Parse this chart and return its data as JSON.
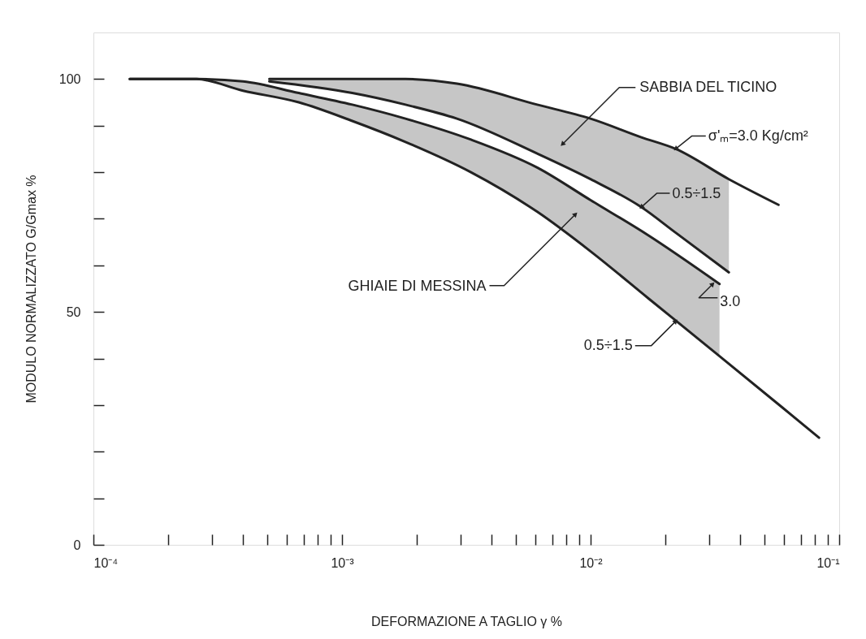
{
  "chart_data": {
    "type": "line",
    "xlabel": "DEFORMAZIONE A TAGLIO γ %",
    "ylabel": "MODULO NORMALIZZATO G/Gmax %",
    "log": "x",
    "xlim": [
      0.0001,
      0.1
    ],
    "xticks": [
      {
        "value": 0.0001,
        "label": "10⁻⁴"
      },
      {
        "value": 0.0002,
        "label": null
      },
      {
        "value": 0.0003,
        "label": null
      },
      {
        "value": 0.0004,
        "label": null
      },
      {
        "value": 0.0005,
        "label": null
      },
      {
        "value": 0.0006,
        "label": null
      },
      {
        "value": 0.0007,
        "label": null
      },
      {
        "value": 0.0008,
        "label": null
      },
      {
        "value": 0.0009,
        "label": null
      },
      {
        "value": 0.001,
        "label": "10⁻³"
      },
      {
        "value": 0.002,
        "label": null
      },
      {
        "value": 0.003,
        "label": null
      },
      {
        "value": 0.004,
        "label": null
      },
      {
        "value": 0.005,
        "label": null
      },
      {
        "value": 0.006,
        "label": null
      },
      {
        "value": 0.007,
        "label": null
      },
      {
        "value": 0.008,
        "label": null
      },
      {
        "value": 0.009,
        "label": null
      },
      {
        "value": 0.01,
        "label": "10⁻²"
      },
      {
        "value": 0.02,
        "label": null
      },
      {
        "value": 0.03,
        "label": null
      },
      {
        "value": 0.04,
        "label": null
      },
      {
        "value": 0.05,
        "label": null
      },
      {
        "value": 0.06,
        "label": null
      },
      {
        "value": 0.07,
        "label": null
      },
      {
        "value": 0.08,
        "label": null
      },
      {
        "value": 0.09,
        "label": null
      },
      {
        "value": 0.1,
        "label": "10⁻¹"
      }
    ],
    "ylim": [
      0,
      110
    ],
    "yticks": [
      0,
      {
        "value": 10,
        "label": null
      },
      {
        "value": 20,
        "label": null
      },
      {
        "value": 30,
        "label": null
      },
      {
        "value": 40,
        "label": null
      },
      50,
      {
        "value": 60,
        "label": null
      },
      {
        "value": 70,
        "label": null
      },
      {
        "value": 80,
        "label": null
      },
      {
        "value": 90,
        "label": null
      },
      100
    ],
    "grid": false,
    "marker": "none",
    "line_style": "solid",
    "series": [
      {
        "color": "#222222",
        "x": [
          0.00051,
          0.0011,
          0.0018,
          0.0029,
          0.0061,
          0.01,
          0.016,
          0.022,
          0.036,
          0.057
        ],
        "values": [
          100,
          100,
          100,
          99,
          94.5,
          91.5,
          87.5,
          85,
          78.5,
          73
        ],
        "lower": [
          99.5,
          97,
          94.5,
          91.5,
          84,
          78.5,
          72.5,
          67,
          58.5,
          null
        ],
        "upper": [
          100,
          100,
          100,
          99,
          94.5,
          91.5,
          87.5,
          85,
          78.5,
          null
        ]
      },
      {
        "color": "#222222",
        "x": [
          0.00051,
          0.0011,
          0.0018,
          0.0029,
          0.0061,
          0.01,
          0.016,
          0.022,
          0.036
        ],
        "values": [
          99.5,
          97,
          94.5,
          91.5,
          84,
          78.5,
          72.5,
          67,
          58.5
        ]
      },
      {
        "color": "#222222",
        "x": [
          0.00014,
          0.00026,
          0.0004,
          0.00067,
          0.0011,
          0.0018,
          0.0033,
          0.0061,
          0.01,
          0.017,
          0.033
        ],
        "values": [
          100,
          100,
          99.5,
          97,
          94.5,
          91.5,
          87,
          81,
          74,
          66.5,
          56
        ]
      },
      {
        "color": "#222222",
        "x": [
          0.00014,
          0.00026,
          0.0004,
          0.00067,
          0.0011,
          0.0018,
          0.0033,
          0.0061,
          0.01,
          0.017,
          0.033,
          0.059,
          0.083
        ],
        "values": [
          100,
          100,
          97.5,
          95,
          91,
          86.5,
          80,
          71.5,
          63,
          53,
          40.5,
          29.5,
          23
        ],
        "lower": [
          100,
          100,
          97.5,
          95,
          91,
          86.5,
          80,
          71.5,
          63,
          53,
          40.5,
          null,
          null
        ],
        "upper": [
          100,
          100,
          99.5,
          97,
          94.5,
          91.5,
          87,
          81,
          74,
          66.5,
          56,
          null,
          null
        ]
      }
    ],
    "annotations": [
      {
        "text": "SABBIA DEL TICINO",
        "x": 0.0077,
        "y": 86
      },
      {
        "text": "σ'ₘ=3.0 Kg/cm²",
        "x": 0.022,
        "y": 85
      },
      {
        "text": "0.5÷1.5",
        "x": 0.016,
        "y": 72.5
      },
      {
        "text": "GHIAIE DI MESSINA",
        "x": 0.0087,
        "y": 71
      },
      {
        "text": "3.0",
        "x": 0.031,
        "y": 56
      },
      {
        "text": "0.5÷1.5",
        "x": 0.022,
        "y": 48
      }
    ]
  }
}
